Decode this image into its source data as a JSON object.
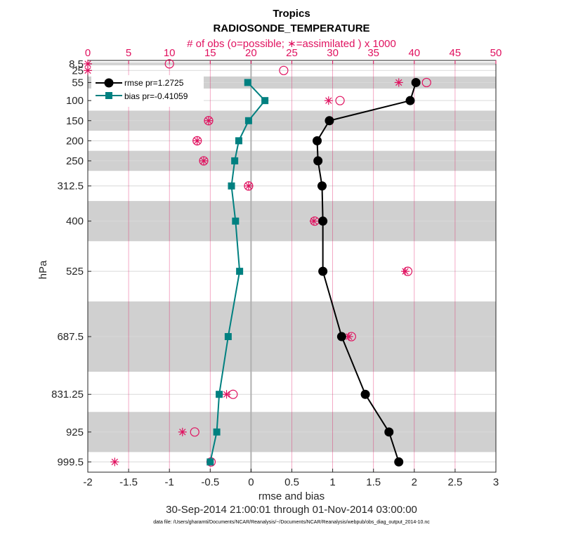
{
  "chart_data": {
    "type": "line",
    "title": "Tropics",
    "subtitle": "RADIOSONDE_TEMPERATURE",
    "top_axis_label": "# of obs (o=possible; ∗=assimilated ) x 1000",
    "xlabel": "rmse and bias",
    "ylabel": "hPa",
    "date_range": "30-Sep-2014 21:00:01 through 01-Nov-2014 03:00:00",
    "footer": "data file: /Users/gharamti/Documents/NCAR/Reanalysis/~/Documents/NCAR/Reanalysis/webpub/obs_diag_output_2014-10.nc",
    "xlim": [
      -2,
      3
    ],
    "x_ticks": [
      "-2",
      "-1.5",
      "-1",
      "-0.5",
      "0",
      "0.5",
      "1",
      "1.5",
      "2",
      "2.5",
      "3"
    ],
    "top_xlim": [
      0,
      50
    ],
    "top_ticks": [
      "0",
      "5",
      "10",
      "15",
      "20",
      "25",
      "30",
      "35",
      "40",
      "45",
      "50"
    ],
    "levels": [
      "8.5",
      "25",
      "55",
      "100",
      "150",
      "200",
      "250",
      "312.5",
      "400",
      "525",
      "687.5",
      "831.25",
      "925",
      "999.5"
    ],
    "level_values": [
      8.5,
      25,
      55,
      100,
      150,
      200,
      250,
      312.5,
      400,
      525,
      687.5,
      831.25,
      925,
      999.5
    ],
    "legend": [
      "rmse pr=1.2725",
      "bias pr=-0.41059"
    ],
    "series": [
      {
        "name": "rmse pr=1.2725",
        "color": "#000000",
        "levels": [
          55,
          100,
          150,
          200,
          250,
          312.5,
          400,
          525,
          687.5,
          831.25,
          925,
          999.5
        ],
        "values": [
          2.02,
          1.95,
          0.96,
          0.81,
          0.82,
          0.87,
          0.88,
          0.88,
          1.11,
          1.4,
          1.69,
          1.81
        ]
      },
      {
        "name": "bias pr=-0.41059",
        "color": "#008080",
        "levels": [
          55,
          100,
          150,
          200,
          250,
          312.5,
          400,
          525,
          687.5,
          831.25,
          925,
          999.5
        ],
        "values": [
          -0.04,
          0.17,
          -0.03,
          -0.15,
          -0.2,
          -0.24,
          -0.19,
          -0.14,
          -0.28,
          -0.39,
          -0.42,
          -0.5
        ]
      }
    ],
    "obs_possible": {
      "levels": [
        8.5,
        25,
        55,
        100,
        150,
        200,
        250,
        312.5,
        400,
        525,
        687.5,
        831.25,
        925,
        999.5
      ],
      "values": [
        10.0,
        24.0,
        41.5,
        30.9,
        14.8,
        13.4,
        14.2,
        19.7,
        27.8,
        39.2,
        32.3,
        17.8,
        13.1,
        15.1
      ]
    },
    "obs_assimilated": {
      "levels": [
        8.5,
        25,
        55,
        100,
        150,
        200,
        250,
        312.5,
        400,
        525,
        687.5,
        831.25,
        925,
        999.5
      ],
      "values": [
        0,
        0,
        38.1,
        29.5,
        14.8,
        13.4,
        14.2,
        19.7,
        27.7,
        38.9,
        32.0,
        17.0,
        11.6,
        3.3
      ]
    },
    "grey_bands": [
      [
        5,
        12
      ],
      [
        40,
        70
      ],
      [
        125,
        175
      ],
      [
        225,
        275
      ],
      [
        350,
        450
      ],
      [
        600,
        775
      ],
      [
        875,
        975
      ]
    ],
    "colors": {
      "obs": "#e0115f",
      "band": "#d0d0d0",
      "zero_line": "#b0b0b0",
      "grid": "#e0115f"
    }
  }
}
